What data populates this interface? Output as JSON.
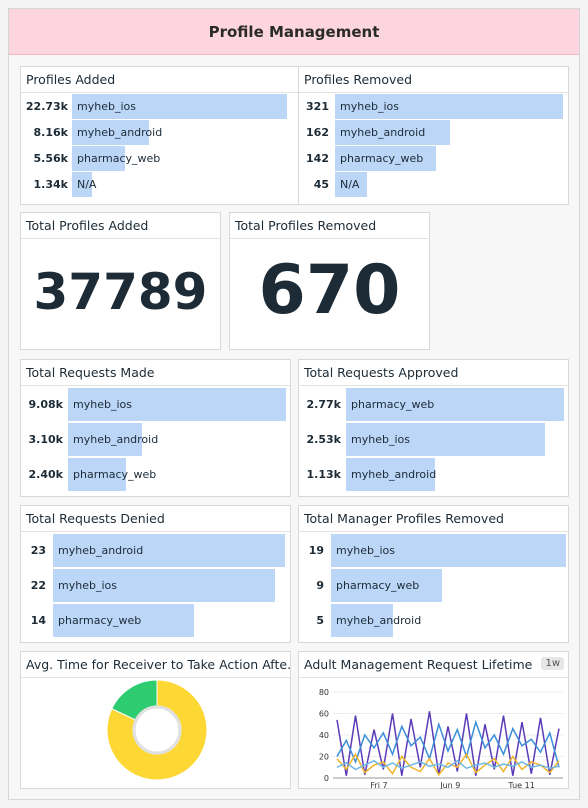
{
  "header": {
    "title": "Profile Management"
  },
  "profiles_added": {
    "title": "Profiles Added",
    "rows": [
      {
        "value": "22.73k",
        "label": "myheb_ios",
        "fraction": 1.0
      },
      {
        "value": "8.16k",
        "label": "myheb_android",
        "fraction": 0.359
      },
      {
        "value": "5.56k",
        "label": "pharmacy_web",
        "fraction": 0.245
      },
      {
        "value": "1.34k",
        "label": "N/A",
        "fraction": 0.059
      }
    ]
  },
  "profiles_removed": {
    "title": "Profiles Removed",
    "rows": [
      {
        "value": "321",
        "label": "myheb_ios",
        "fraction": 1.0
      },
      {
        "value": "162",
        "label": "myheb_android",
        "fraction": 0.505
      },
      {
        "value": "142",
        "label": "pharmacy_web",
        "fraction": 0.442
      },
      {
        "value": "45",
        "label": "N/A",
        "fraction": 0.14
      }
    ]
  },
  "total_added": {
    "title": "Total Profiles Added",
    "value": "37789"
  },
  "total_removed": {
    "title": "Total Profiles Removed",
    "value": "670"
  },
  "requests_made": {
    "title": "Total Requests Made",
    "rows": [
      {
        "value": "9.08k",
        "label": "myheb_ios",
        "fraction": 1.0
      },
      {
        "value": "3.10k",
        "label": "myheb_android",
        "fraction": 0.341
      },
      {
        "value": "2.40k",
        "label": "pharmacy_web",
        "fraction": 0.264
      }
    ]
  },
  "requests_approved": {
    "title": "Total Requests Approved",
    "rows": [
      {
        "value": "2.77k",
        "label": "pharmacy_web",
        "fraction": 1.0
      },
      {
        "value": "2.53k",
        "label": "myheb_ios",
        "fraction": 0.913
      },
      {
        "value": "1.13k",
        "label": "myheb_android",
        "fraction": 0.408
      }
    ]
  },
  "requests_denied": {
    "title": "Total Requests Denied",
    "rows": [
      {
        "value": "23",
        "label": "myheb_android",
        "fraction": 1.0
      },
      {
        "value": "22",
        "label": "myheb_ios",
        "fraction": 0.957
      },
      {
        "value": "14",
        "label": "pharmacy_web",
        "fraction": 0.609
      }
    ]
  },
  "manager_removed": {
    "title": "Total Manager Profiles Removed",
    "rows": [
      {
        "value": "19",
        "label": "myheb_ios",
        "fraction": 1.0
      },
      {
        "value": "9",
        "label": "pharmacy_web",
        "fraction": 0.474
      },
      {
        "value": "5",
        "label": "myheb_android",
        "fraction": 0.263
      }
    ]
  },
  "avg_time": {
    "title": "Avg. Time for Receiver to Take Action Afte...",
    "colors": {
      "yellow": "#fdd835",
      "green": "#2ecc71"
    }
  },
  "lifetime": {
    "title": "Adult Management Request Lifetime",
    "badge": "1w"
  },
  "chart_data": [
    {
      "type": "pie",
      "title": "Avg. Time for Receiver to Take Action Afte...",
      "values": [
        82,
        18
      ],
      "colors": [
        "#fdd835",
        "#2ecc71"
      ]
    },
    {
      "type": "line",
      "title": "Adult Management Request Lifetime",
      "ylim": [
        0,
        80
      ],
      "yticks": [
        "0",
        "20",
        "40",
        "60",
        "80"
      ],
      "xticks": [
        {
          "label": "Fri 7",
          "x": 0.2
        },
        {
          "label": "Jun 9",
          "x": 0.51
        },
        {
          "label": "Tue 11",
          "x": 0.82
        }
      ],
      "series": [
        {
          "color": "#5b3cb8",
          "values": [
            54,
            2,
            58,
            3,
            45,
            8,
            60,
            2,
            55,
            10,
            62,
            3,
            48,
            6,
            60,
            2,
            50,
            8,
            58,
            2,
            52,
            4,
            56,
            3,
            46
          ]
        },
        {
          "color": "#3b8fd9",
          "values": [
            20,
            35,
            15,
            40,
            28,
            42,
            22,
            48,
            30,
            38,
            18,
            50,
            25,
            45,
            20,
            52,
            28,
            40,
            22,
            46,
            30,
            36,
            24,
            42,
            10
          ]
        },
        {
          "color": "#f0b429",
          "values": [
            18,
            8,
            22,
            5,
            12,
            15,
            4,
            20,
            10,
            6,
            18,
            3,
            14,
            10,
            22,
            5,
            12,
            18,
            6,
            20,
            8,
            15,
            12,
            5,
            16
          ]
        },
        {
          "color": "#6fb8e8",
          "values": [
            10,
            14,
            8,
            12,
            16,
            10,
            14,
            9,
            12,
            15,
            11,
            13,
            10,
            16,
            9,
            12,
            14,
            10,
            13,
            11,
            15,
            10,
            12,
            9,
            11
          ]
        }
      ]
    }
  ]
}
